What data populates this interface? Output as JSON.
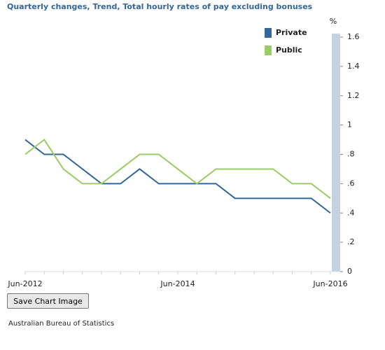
{
  "chart_data": {
    "type": "line",
    "title": "Quarterly changes, Trend, Total hourly rates of pay excluding bonuses",
    "y_unit": "%",
    "categories": [
      "Jun-2012",
      null,
      null,
      null,
      null,
      null,
      null,
      null,
      "Jun-2014",
      null,
      null,
      null,
      null,
      null,
      null,
      null,
      "Jun-2016"
    ],
    "series": [
      {
        "name": "Private",
        "color": "#336699",
        "values": [
          0.9,
          0.8,
          0.8,
          0.7,
          0.6,
          0.6,
          0.7,
          0.6,
          0.6,
          0.6,
          0.6,
          0.5,
          0.5,
          0.5,
          0.5,
          0.5,
          0.4
        ]
      },
      {
        "name": "Public",
        "color": "#99cc66",
        "values": [
          0.8,
          0.9,
          0.7,
          0.6,
          0.6,
          0.7,
          0.8,
          0.8,
          0.7,
          0.6,
          0.7,
          0.7,
          0.7,
          0.7,
          0.6,
          0.6,
          0.5
        ]
      }
    ],
    "ylim": [
      0,
      1.6
    ],
    "yticks": [
      0,
      {
        "value": 0.2,
        "label": ".2"
      },
      {
        "value": 0.4,
        "label": ".4"
      },
      {
        "value": 0.6,
        "label": ".6"
      },
      {
        "value": 0.8,
        "label": ".8"
      },
      1,
      1.2,
      1.4,
      1.6
    ],
    "grid": false
  },
  "button": "Save Chart Image",
  "source": "Australian Bureau of Statistics"
}
